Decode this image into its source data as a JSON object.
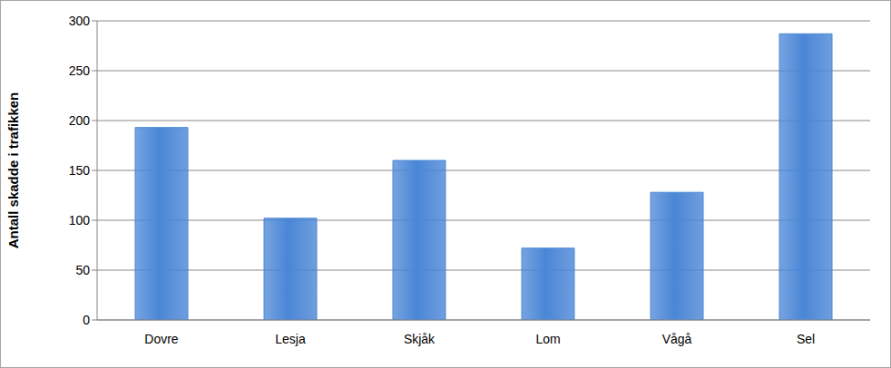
{
  "chart_data": {
    "type": "bar",
    "y_label": "Antall skadde i trafikken",
    "categories": [
      "Dovre",
      "Lesja",
      "Skjåk",
      "Lom",
      "Vågå",
      "Sel"
    ],
    "values": [
      193,
      102,
      160,
      72,
      128,
      287
    ],
    "color": "#4a86d6",
    "ylim": [
      0,
      300
    ],
    "yticks": [
      0,
      50,
      100,
      150,
      200,
      250,
      300
    ],
    "grid": true
  }
}
